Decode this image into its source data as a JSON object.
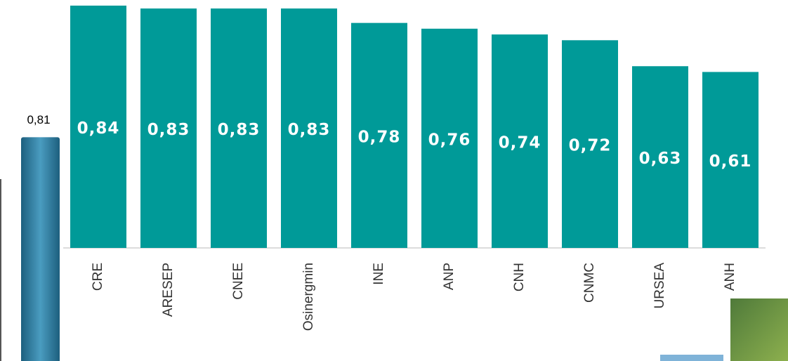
{
  "chart_data": [
    {
      "type": "bar",
      "categories": [
        "CRE",
        "ARESEP",
        "CNEE",
        "Osinergmin",
        "INE",
        "ANP",
        "CNH",
        "CNMC",
        "URSEA",
        "ANH"
      ],
      "values": [
        0.84,
        0.83,
        0.83,
        0.83,
        0.78,
        0.76,
        0.74,
        0.72,
        0.63,
        0.61
      ],
      "value_labels": [
        "0,84",
        "0,83",
        "0,83",
        "0,83",
        "0,78",
        "0,76",
        "0,74",
        "0,72",
        "0,63",
        "0,61"
      ],
      "color": "#009a98"
    },
    {
      "type": "bar",
      "values": [
        0.81
      ],
      "value_labels": [
        "0,81"
      ],
      "color": "#2f7fa0"
    }
  ]
}
